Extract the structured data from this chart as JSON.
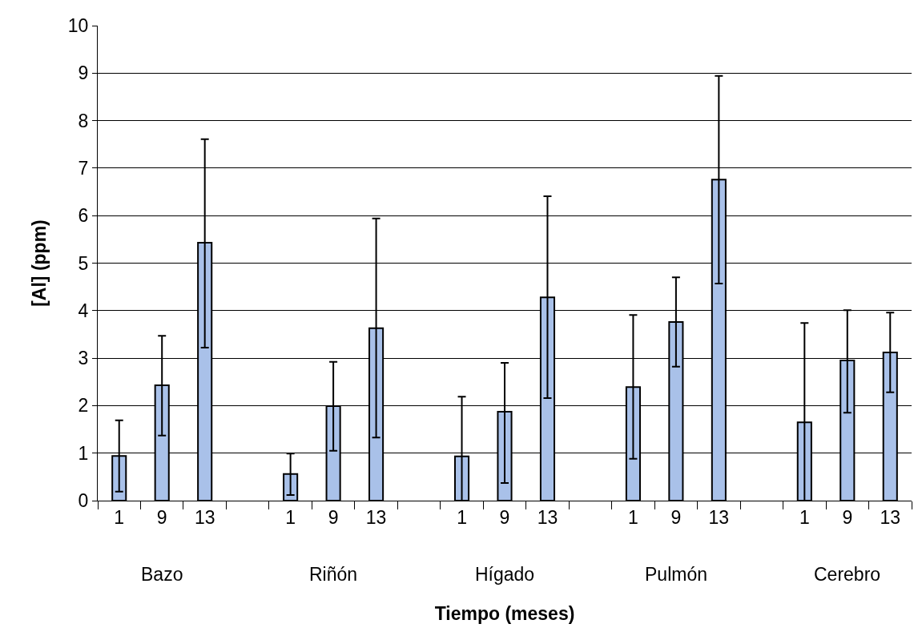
{
  "chart_data": {
    "type": "bar",
    "xlabel": "Tiempo (meses)",
    "ylabel": "[Al] (ppm)",
    "categories": [
      "1",
      "9",
      "13",
      null,
      "1",
      "9",
      "13",
      null,
      "1",
      "9",
      "13",
      null,
      "1",
      "9",
      "13",
      null,
      "1",
      "9",
      "13"
    ],
    "values": [
      0.94,
      2.43,
      5.43,
      null,
      0.56,
      1.99,
      3.63,
      null,
      0.93,
      1.87,
      4.28,
      null,
      2.39,
      3.76,
      6.76,
      null,
      1.65,
      2.95,
      3.12
    ],
    "errors": [
      [
        0.19,
        1.69
      ],
      [
        1.37,
        3.47
      ],
      [
        3.22,
        7.61
      ],
      null,
      [
        0.12,
        0.99
      ],
      [
        1.05,
        2.92
      ],
      [
        1.33,
        5.94
      ],
      null,
      [
        0,
        2.19
      ],
      [
        0.37,
        2.9
      ],
      [
        2.16,
        6.41
      ],
      null,
      [
        0.88,
        3.91
      ],
      [
        2.82,
        4.7
      ],
      [
        4.57,
        8.94
      ],
      null,
      [
        0,
        3.74
      ],
      [
        1.85,
        4.01
      ],
      [
        2.28,
        3.96
      ]
    ],
    "color": "#a9c1e9",
    "annotations": [
      "Bazo",
      "Riñón",
      "Hígado",
      "Pulmón",
      "Cerebro"
    ],
    "ylim": [
      0,
      10
    ],
    "yticks": [
      0,
      1,
      2,
      3,
      4,
      5,
      6,
      7,
      8,
      9,
      10
    ],
    "grid": "y",
    "legend": false
  }
}
